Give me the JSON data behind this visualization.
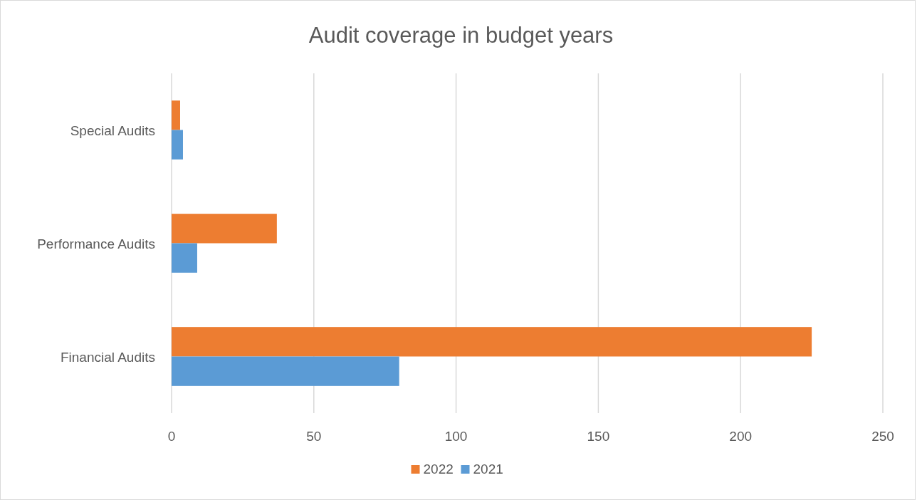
{
  "chart_data": {
    "type": "bar",
    "orientation": "horizontal",
    "title": "Audit coverage in budget years",
    "categories": [
      "Special Audits",
      "Performance Audits",
      "Financial Audits"
    ],
    "series": [
      {
        "name": "2022",
        "color": "#ed7d31",
        "values": [
          3,
          37,
          225
        ]
      },
      {
        "name": "2021",
        "color": "#5b9bd5",
        "values": [
          4,
          9,
          80
        ]
      }
    ],
    "xlim": [
      0,
      250
    ],
    "xticks": [
      0,
      50,
      100,
      150,
      200,
      250
    ],
    "grid": "x",
    "legend": "bottom"
  }
}
